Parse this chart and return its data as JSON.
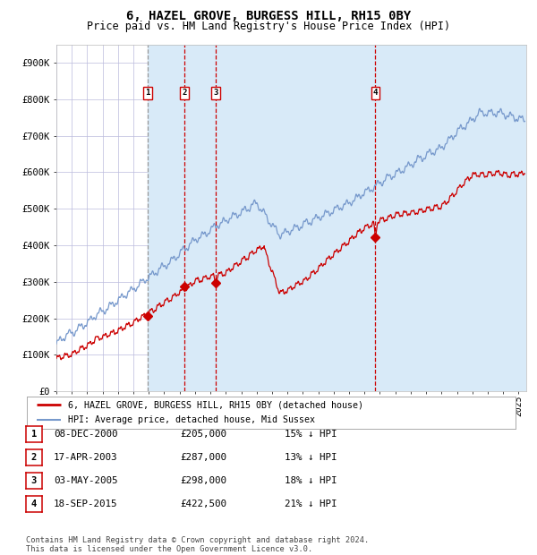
{
  "title": "6, HAZEL GROVE, BURGESS HILL, RH15 0BY",
  "subtitle": "Price paid vs. HM Land Registry's House Price Index (HPI)",
  "title_fontsize": 10,
  "subtitle_fontsize": 8.5,
  "hpi_line_color": "#7799cc",
  "price_line_color": "#cc0000",
  "marker_color": "#cc0000",
  "background_color": "#ffffff",
  "grid_color": "#bbbbdd",
  "sale_vline_color": "#cc0000",
  "ownership_shade_color": "#d8eaf8",
  "first_vline_color": "#999999",
  "ylim": [
    0,
    950000
  ],
  "yticks": [
    0,
    100000,
    200000,
    300000,
    400000,
    500000,
    600000,
    700000,
    800000,
    900000
  ],
  "ytick_labels": [
    "£0",
    "£100K",
    "£200K",
    "£300K",
    "£400K",
    "£500K",
    "£600K",
    "£700K",
    "£800K",
    "£900K"
  ],
  "xlim_start": 1995.0,
  "xlim_end": 2025.5,
  "sales": [
    {
      "num": 1,
      "year": 2000.94,
      "price": 205000
    },
    {
      "num": 2,
      "year": 2003.29,
      "price": 287000
    },
    {
      "num": 3,
      "year": 2005.34,
      "price": 298000
    },
    {
      "num": 4,
      "year": 2015.71,
      "price": 422500
    }
  ],
  "ownership_periods": [
    {
      "start": 2000.94,
      "end": 2003.29
    },
    {
      "start": 2003.29,
      "end": 2005.34
    },
    {
      "start": 2005.34,
      "end": 2015.71
    },
    {
      "start": 2015.71,
      "end": 2025.5
    }
  ],
  "legend_entries": [
    "6, HAZEL GROVE, BURGESS HILL, RH15 0BY (detached house)",
    "HPI: Average price, detached house, Mid Sussex"
  ],
  "footer": "Contains HM Land Registry data © Crown copyright and database right 2024.\nThis data is licensed under the Open Government Licence v3.0.",
  "table_rows": [
    {
      "num": 1,
      "date": "08-DEC-2000",
      "price": "£205,000",
      "pct": "15% ↓ HPI"
    },
    {
      "num": 2,
      "date": "17-APR-2003",
      "price": "£287,000",
      "pct": "13% ↓ HPI"
    },
    {
      "num": 3,
      "date": "03-MAY-2005",
      "price": "£298,000",
      "pct": "18% ↓ HPI"
    },
    {
      "num": 4,
      "date": "18-SEP-2015",
      "price": "£422,500",
      "pct": "21% ↓ HPI"
    }
  ]
}
